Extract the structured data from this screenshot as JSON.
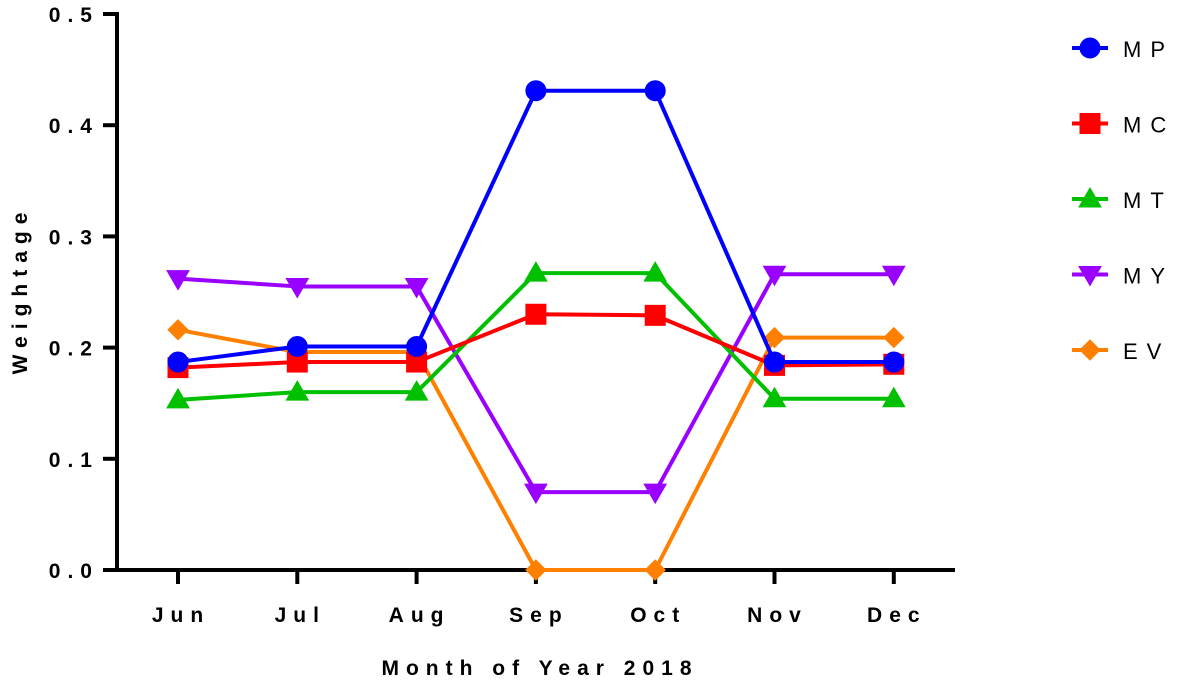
{
  "chart_data": {
    "type": "line",
    "xlabel": "Month of Year 2018",
    "ylabel": "Weightage",
    "categories": [
      "Jun",
      "Jul",
      "Aug",
      "Sep",
      "Oct",
      "Nov",
      "Dec"
    ],
    "ylim": [
      0,
      0.5
    ],
    "yticks": [
      "0.0",
      "0.1",
      "0.2",
      "0.3",
      "0.4",
      "0.5"
    ],
    "grid": false,
    "legend_position": "right",
    "series": [
      {
        "name": "MP",
        "color": "#0000ff",
        "marker": "circle",
        "values": [
          0.187,
          0.201,
          0.201,
          0.431,
          0.431,
          0.187,
          0.187
        ]
      },
      {
        "name": "MC",
        "color": "#ff0000",
        "marker": "square",
        "values": [
          0.182,
          0.187,
          0.187,
          0.23,
          0.229,
          0.184,
          0.185
        ]
      },
      {
        "name": "MT",
        "color": "#00c000",
        "marker": "triangle-up",
        "values": [
          0.153,
          0.16,
          0.16,
          0.267,
          0.267,
          0.154,
          0.154
        ]
      },
      {
        "name": "MY",
        "color": "#9900ff",
        "marker": "triangle-down",
        "values": [
          0.262,
          0.255,
          0.255,
          0.07,
          0.07,
          0.266,
          0.266
        ]
      },
      {
        "name": "EV",
        "color": "#ff8000",
        "marker": "diamond",
        "values": [
          0.216,
          0.196,
          0.196,
          0.0,
          0.0,
          0.209,
          0.209
        ]
      }
    ]
  }
}
